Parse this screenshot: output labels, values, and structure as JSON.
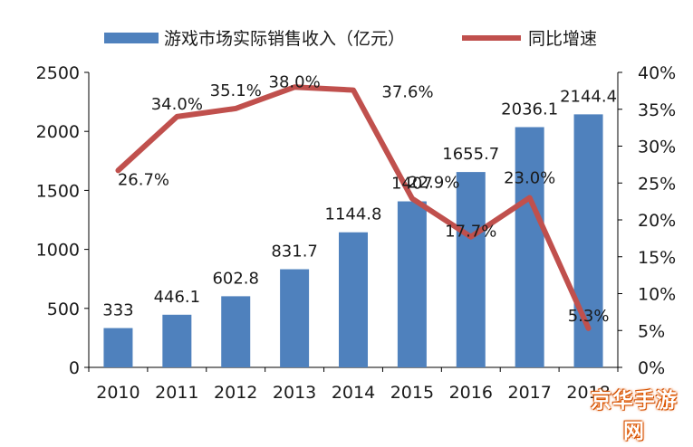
{
  "chart_data": {
    "type": "bar+line",
    "categories": [
      "2010",
      "2011",
      "2012",
      "2013",
      "2014",
      "2015",
      "2016",
      "2017",
      "2018"
    ],
    "series": [
      {
        "name": "游戏市场实际销售收入（亿元）",
        "kind": "bar",
        "axis": "left",
        "color": "#4f81bd",
        "values": [
          333,
          446.1,
          602.8,
          831.7,
          1144.8,
          1407,
          1655.7,
          2036.1,
          2144.4
        ],
        "labels": [
          "333",
          "446.1",
          "602.8",
          "831.7",
          "1144.8",
          "1407",
          "1655.7",
          "2036.1",
          "2144.4"
        ]
      },
      {
        "name": "同比增速",
        "kind": "line",
        "axis": "right",
        "color": "#c0504d",
        "values": [
          26.7,
          34.0,
          35.1,
          38.0,
          37.6,
          22.9,
          17.7,
          23.0,
          5.3
        ],
        "labels": [
          "26.7%",
          "34.0%",
          "35.1%",
          "38.0%",
          "37.6%",
          "22.9%",
          "17.7%",
          "23.0%",
          "5.3%"
        ]
      }
    ],
    "y_left": {
      "range": [
        0,
        2500
      ],
      "ticks": [
        0,
        500,
        1000,
        1500,
        2000,
        2500
      ],
      "tick_labels": [
        "0",
        "500",
        "1000",
        "1500",
        "2000",
        "2500"
      ]
    },
    "y_right": {
      "range": [
        0,
        40
      ],
      "ticks": [
        0,
        5,
        10,
        15,
        20,
        25,
        30,
        35,
        40
      ],
      "tick_labels": [
        "0%",
        "5%",
        "10%",
        "15%",
        "20%",
        "25%",
        "30%",
        "35%",
        "40%"
      ]
    },
    "grid": false,
    "legend_position": "top"
  },
  "watermark": {
    "text": "京华手游网",
    "color": "#e35a00"
  }
}
